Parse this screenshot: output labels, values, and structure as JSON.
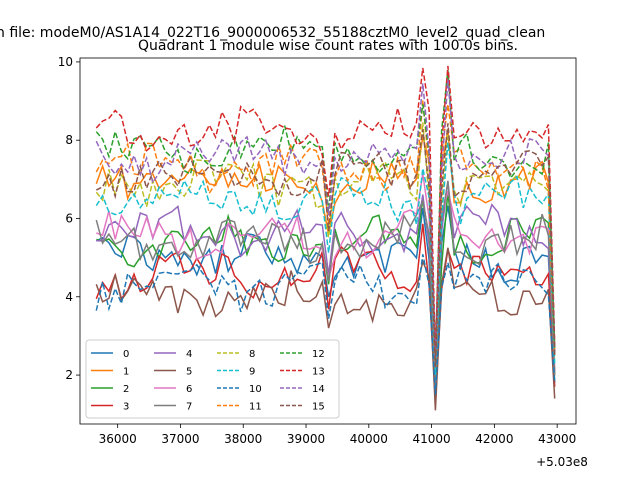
{
  "chart_data": {
    "type": "line",
    "suptitle": "n file: modeM0/AS1A14_022T16_9000006532_55188cztM0_level2_quad_clean",
    "title": "Quadrant 1 module wise count rates with 100.0s bins.",
    "xlabel": "",
    "ylabel": "",
    "x_offset_label": "+5.03e8",
    "xlim": [
      35400,
      43300
    ],
    "ylim": [
      0.75,
      10.1
    ],
    "xticks": [
      36000,
      37000,
      38000,
      39000,
      40000,
      41000,
      42000,
      43000
    ],
    "xtick_labels": [
      "36000",
      "37000",
      "38000",
      "39000",
      "40000",
      "41000",
      "42000",
      "43000"
    ],
    "yticks": [
      2,
      4,
      6,
      8,
      10
    ],
    "ytick_labels": [
      "2",
      "4",
      "6",
      "8",
      "10"
    ],
    "grid": false,
    "legend_position": "lower-left",
    "legend_columns": 4,
    "x_range": {
      "start": 35660,
      "step": 100,
      "count": 74
    },
    "series": [
      {
        "name": "0",
        "color": "#1f77b4",
        "dash": "solid",
        "base": 5.0,
        "dip": 1.5
      },
      {
        "name": "1",
        "color": "#ff7f0e",
        "dash": "solid",
        "base": 7.0,
        "dip": 2.3
      },
      {
        "name": "2",
        "color": "#2ca02c",
        "dash": "solid",
        "base": 5.4,
        "dip": 1.7
      },
      {
        "name": "3",
        "color": "#d62728",
        "dash": "solid",
        "base": 4.6,
        "dip": 1.4
      },
      {
        "name": "4",
        "color": "#9467bd",
        "dash": "solid",
        "base": 5.7,
        "dip": 1.8
      },
      {
        "name": "5",
        "color": "#8c564b",
        "dash": "solid",
        "base": 4.0,
        "dip": 1.1
      },
      {
        "name": "6",
        "color": "#e377c2",
        "dash": "solid",
        "base": 5.6,
        "dip": 1.8
      },
      {
        "name": "7",
        "color": "#7f7f7f",
        "dash": "solid",
        "base": 5.5,
        "dip": 1.7
      },
      {
        "name": "8",
        "color": "#bcbd22",
        "dash": "dashed",
        "base": 6.9,
        "dip": 2.1
      },
      {
        "name": "9",
        "color": "#17becf",
        "dash": "dashed",
        "base": 6.4,
        "dip": 2.0
      },
      {
        "name": "10",
        "color": "#1f77b4",
        "dash": "dashed",
        "base": 4.3,
        "dip": 1.5
      },
      {
        "name": "11",
        "color": "#ff7f0e",
        "dash": "dashed",
        "base": 7.3,
        "dip": 2.2
      },
      {
        "name": "12",
        "color": "#2ca02c",
        "dash": "dashed",
        "base": 7.7,
        "dip": 2.4
      },
      {
        "name": "13",
        "color": "#d62728",
        "dash": "dashed",
        "base": 8.2,
        "dip": 2.5
      },
      {
        "name": "14",
        "color": "#9467bd",
        "dash": "dashed",
        "base": 7.6,
        "dip": 2.3
      },
      {
        "name": "15",
        "color": "#8c564b",
        "dash": "dashed",
        "base": 7.1,
        "dip": 2.2
      }
    ]
  }
}
